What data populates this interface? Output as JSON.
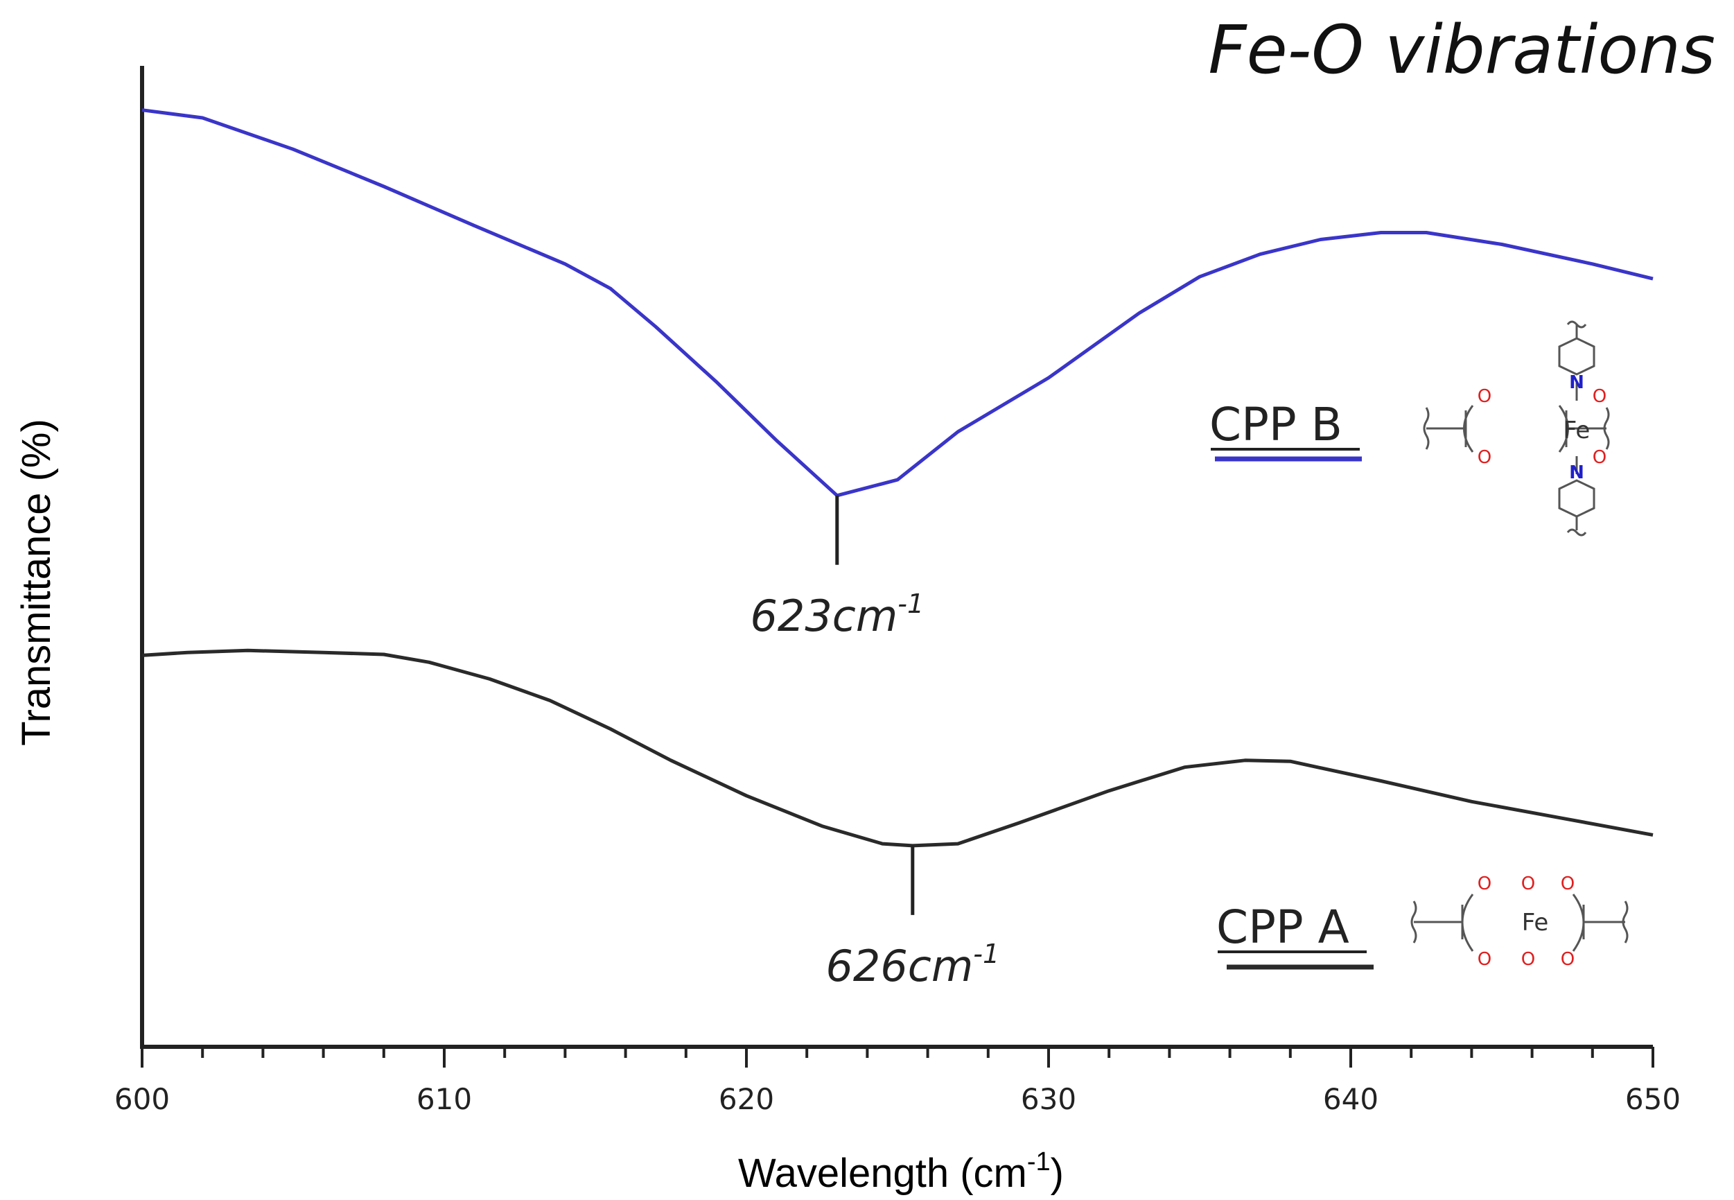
{
  "chart_data": {
    "type": "line",
    "title": "Fe-O vibrations",
    "xlabel": "Wavelength (cm",
    "xlabel_sup": "-1",
    "xlabel_close": ")",
    "ylabel": "Transmittance (%)",
    "xlim": [
      600,
      650
    ],
    "ylim": [
      0,
      100
    ],
    "xticks": [
      600,
      610,
      620,
      630,
      640,
      650
    ],
    "minor_tick_step": 2,
    "grid": false,
    "series": [
      {
        "name": "CPP B",
        "color": "#3a35c9",
        "points": [
          [
            600,
            95.5
          ],
          [
            602,
            94.7
          ],
          [
            605,
            91.5
          ],
          [
            608,
            87.7
          ],
          [
            611,
            83.7
          ],
          [
            614,
            79.8
          ],
          [
            615.5,
            77.3
          ],
          [
            617,
            73.4
          ],
          [
            619,
            67.8
          ],
          [
            621,
            61.8
          ],
          [
            623,
            56.2
          ],
          [
            625,
            57.8
          ],
          [
            627,
            62.7
          ],
          [
            630,
            68.2
          ],
          [
            633,
            74.8
          ],
          [
            635,
            78.5
          ],
          [
            637,
            80.8
          ],
          [
            639,
            82.3
          ],
          [
            641,
            83.0
          ],
          [
            642.5,
            83.0
          ],
          [
            645,
            81.8
          ],
          [
            648,
            79.8
          ],
          [
            650,
            78.3
          ]
        ]
      },
      {
        "name": "CPP A",
        "color": "#2a2a2a",
        "points": [
          [
            600,
            39.9
          ],
          [
            601.5,
            40.2
          ],
          [
            603.5,
            40.4
          ],
          [
            606,
            40.2
          ],
          [
            608,
            40.0
          ],
          [
            609.5,
            39.2
          ],
          [
            611.5,
            37.5
          ],
          [
            613.5,
            35.3
          ],
          [
            615.5,
            32.4
          ],
          [
            617.5,
            29.2
          ],
          [
            620,
            25.6
          ],
          [
            622.5,
            22.5
          ],
          [
            624.5,
            20.7
          ],
          [
            625.5,
            20.5
          ],
          [
            627,
            20.7
          ],
          [
            629,
            22.8
          ],
          [
            632,
            26.1
          ],
          [
            634.5,
            28.5
          ],
          [
            636.5,
            29.2
          ],
          [
            638,
            29.1
          ],
          [
            641,
            27.1
          ],
          [
            644,
            25.0
          ],
          [
            647,
            23.3
          ],
          [
            650,
            21.6
          ]
        ]
      }
    ],
    "annotations": [
      {
        "series": "CPP B",
        "x": 623,
        "y": 56.2,
        "value": "623",
        "unit": "cm",
        "sup": "-1"
      },
      {
        "series": "CPP A",
        "x": 625.5,
        "y": 20.5,
        "value": "626",
        "unit": "cm",
        "sup": "-1"
      }
    ],
    "legend": [
      {
        "label": "CPP B",
        "color": "#3a35c9"
      },
      {
        "label": "CPP A",
        "color": "#2a2a2a"
      }
    ]
  },
  "structures": {
    "cpp_b": {
      "center": "Fe",
      "oxygen": "O",
      "nitrogen": "N",
      "o_color": "#e02020",
      "n_color": "#2020c8"
    },
    "cpp_a": {
      "center": "Fe",
      "oxygen": "O",
      "o_color": "#e02020"
    }
  }
}
